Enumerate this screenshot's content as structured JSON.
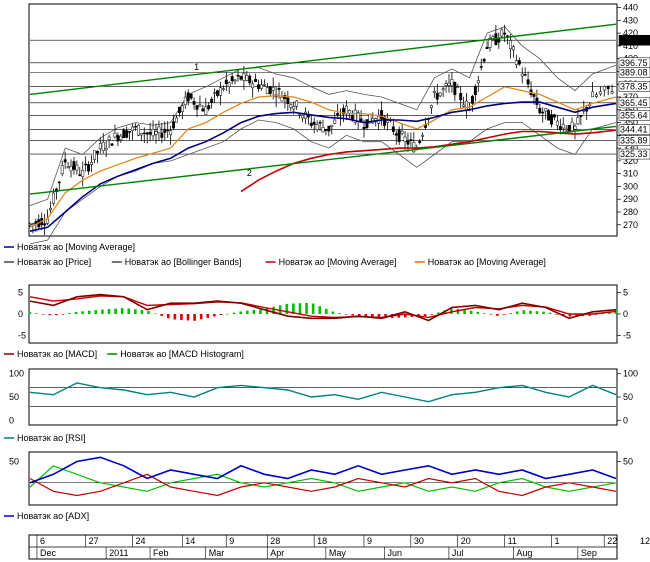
{
  "chart_data": [
    {
      "type": "candlestick",
      "y_ticks": [
        270,
        280,
        290,
        300,
        310,
        320,
        330,
        340,
        350,
        360,
        370,
        380,
        390,
        400,
        410,
        420,
        430,
        440
      ],
      "ylim": [
        262,
        442
      ],
      "grid_levels": [
        414.43,
        396.75,
        389.08,
        378.35,
        365.45,
        355.64,
        344.41,
        335.89,
        325.33
      ],
      "price_labels": [
        "414.43",
        "396.75",
        "389.08",
        "378.35",
        "365.45",
        "355.64",
        "344.41",
        "335.89",
        "325.33"
      ],
      "trendlines": [
        {
          "label": "1",
          "from": [
            0,
            372
          ],
          "to": [
            1,
            427
          ]
        },
        {
          "label": "2",
          "from": [
            0,
            294
          ],
          "to": [
            1,
            347
          ]
        }
      ],
      "trend_label_positions": [
        {
          "label": "1",
          "x": 0.28,
          "y": 391
        },
        {
          "label": "2",
          "x": 0.37,
          "y": 308
        }
      ],
      "price_x": [
        0.0,
        0.03,
        0.06,
        0.09,
        0.12,
        0.15,
        0.18,
        0.21,
        0.24,
        0.27,
        0.3,
        0.33,
        0.36,
        0.39,
        0.42,
        0.45,
        0.48,
        0.51,
        0.54,
        0.57,
        0.6,
        0.63,
        0.66,
        0.69,
        0.72,
        0.75,
        0.78,
        0.81,
        0.84,
        0.87,
        0.9,
        0.93,
        0.96,
        1.0
      ],
      "price_close": [
        270,
        275,
        320,
        310,
        330,
        340,
        345,
        340,
        345,
        370,
        360,
        378,
        385,
        380,
        375,
        365,
        350,
        345,
        360,
        350,
        355,
        340,
        330,
        370,
        380,
        360,
        410,
        420,
        390,
        360,
        350,
        345,
        370,
        378
      ],
      "ma_blue": [
        265,
        268,
        280,
        292,
        302,
        308,
        313,
        318,
        322,
        330,
        335,
        342,
        350,
        355,
        357,
        358,
        356,
        354,
        353,
        350,
        352,
        352,
        351,
        354,
        358,
        360,
        363,
        365,
        366,
        366,
        362,
        358,
        362,
        365
      ],
      "ma_orange": [
        268,
        275,
        295,
        305,
        312,
        317,
        322,
        326,
        330,
        345,
        350,
        358,
        365,
        370,
        371,
        370,
        366,
        360,
        357,
        357,
        355,
        350,
        345,
        352,
        360,
        362,
        370,
        378,
        375,
        372,
        366,
        360,
        365,
        370
      ],
      "ma_red": [
        null,
        null,
        null,
        null,
        null,
        null,
        null,
        null,
        null,
        null,
        null,
        null,
        296,
        305,
        312,
        318,
        322,
        325,
        327,
        328,
        329,
        330,
        330,
        331,
        333,
        335,
        338,
        341,
        343,
        343,
        342,
        341,
        342,
        344
      ],
      "bb_upper": [
        285,
        290,
        330,
        325,
        338,
        346,
        350,
        348,
        350,
        372,
        378,
        385,
        392,
        393,
        388,
        385,
        378,
        372,
        375,
        372,
        370,
        365,
        360,
        385,
        392,
        385,
        420,
        425,
        410,
        400,
        385,
        375,
        388,
        395
      ],
      "bb_lower": [
        255,
        258,
        280,
        290,
        300,
        308,
        312,
        318,
        320,
        325,
        330,
        335,
        345,
        352,
        350,
        345,
        335,
        330,
        340,
        335,
        335,
        325,
        315,
        325,
        335,
        335,
        345,
        350,
        350,
        340,
        330,
        325,
        345,
        350
      ],
      "legend_row1": [
        {
          "label": "Новатэк ао [Moving Average]",
          "color": "#000080"
        }
      ],
      "legend_row2": [
        {
          "label": "Новатэк ао [Price]",
          "color": "#444444"
        },
        {
          "label": "Новатэк ао [Bollinger Bands]",
          "color": "#444444"
        },
        {
          "label": "Новатэк ао [Moving Average]",
          "color": "#c00000"
        },
        {
          "label": "Новатэк ао [Moving Average]",
          "color": "#e07000"
        }
      ]
    },
    {
      "type": "line",
      "y_ticks": [
        -5,
        0,
        5
      ],
      "ylim": [
        -6.5,
        6.5
      ],
      "x": [
        0.0,
        0.04,
        0.08,
        0.12,
        0.16,
        0.2,
        0.24,
        0.28,
        0.32,
        0.36,
        0.4,
        0.44,
        0.48,
        0.52,
        0.56,
        0.6,
        0.64,
        0.68,
        0.72,
        0.76,
        0.8,
        0.84,
        0.88,
        0.92,
        0.96,
        1.0
      ],
      "macd": [
        3,
        2,
        4,
        4.5,
        4,
        1,
        2.5,
        2.5,
        3,
        2.5,
        1,
        -0.5,
        -1,
        -1,
        -0.5,
        -1,
        0.5,
        -1.5,
        1.5,
        2,
        1,
        2.5,
        1.5,
        -1,
        0.5,
        1
      ],
      "signal": [
        4,
        3,
        3.5,
        4.2,
        4,
        2,
        2.2,
        2.4,
        2.8,
        2.6,
        1.5,
        0.5,
        -0.5,
        -0.8,
        -0.6,
        -0.8,
        0,
        -0.8,
        0.5,
        1.5,
        1.2,
        2,
        1.6,
        0,
        0,
        0.6
      ],
      "histogram": [
        0.4,
        -0.4,
        0.5,
        1.0,
        1.4,
        0.8,
        -1.2,
        -1.6,
        -0.4,
        0.6,
        1.2,
        2.4,
        2.6,
        0.4,
        -0.6,
        -1.0,
        -0.8,
        -0.4,
        1.4,
        0.6,
        -0.5,
        0.9,
        0.5,
        -0.6,
        -0.4,
        1.0
      ],
      "legend": [
        {
          "label": "Новатэк ао [MACD]",
          "color": "#800000"
        },
        {
          "label": "Новатэк ао [MACD Histogram]",
          "color": "#008000"
        }
      ]
    },
    {
      "type": "line",
      "y_ticks": [
        0,
        50,
        100
      ],
      "ylim": [
        -8,
        108
      ],
      "levels": [
        70,
        30
      ],
      "x": [
        0.0,
        0.04,
        0.08,
        0.12,
        0.16,
        0.2,
        0.24,
        0.28,
        0.32,
        0.36,
        0.4,
        0.44,
        0.48,
        0.52,
        0.56,
        0.6,
        0.64,
        0.68,
        0.72,
        0.76,
        0.8,
        0.84,
        0.88,
        0.92,
        0.96,
        1.0
      ],
      "rsi": [
        60,
        55,
        80,
        70,
        65,
        55,
        60,
        50,
        70,
        75,
        70,
        65,
        50,
        55,
        45,
        60,
        50,
        40,
        55,
        60,
        70,
        75,
        60,
        50,
        75,
        55
      ],
      "legend": [
        {
          "label": "Новатэк ао [RSI]",
          "color": "#008080"
        }
      ]
    },
    {
      "type": "line",
      "y_ticks": [
        50
      ],
      "ylim": [
        0,
        60
      ],
      "levels": [
        25
      ],
      "x": [
        0.0,
        0.04,
        0.08,
        0.12,
        0.16,
        0.2,
        0.24,
        0.28,
        0.32,
        0.36,
        0.4,
        0.44,
        0.48,
        0.52,
        0.56,
        0.6,
        0.64,
        0.68,
        0.72,
        0.76,
        0.8,
        0.84,
        0.88,
        0.92,
        0.96,
        1.0
      ],
      "adx": [
        25,
        35,
        50,
        55,
        45,
        30,
        40,
        35,
        30,
        45,
        35,
        30,
        40,
        35,
        45,
        35,
        40,
        45,
        35,
        40,
        35,
        40,
        30,
        35,
        40,
        30
      ],
      "di_plus": [
        20,
        45,
        35,
        25,
        20,
        15,
        25,
        30,
        35,
        25,
        20,
        25,
        30,
        25,
        15,
        20,
        25,
        15,
        20,
        15,
        25,
        30,
        20,
        15,
        20,
        25
      ],
      "di_minus": [
        30,
        15,
        10,
        15,
        25,
        35,
        20,
        15,
        10,
        20,
        25,
        20,
        15,
        20,
        30,
        25,
        20,
        30,
        25,
        30,
        15,
        10,
        20,
        25,
        20,
        15
      ],
      "legend": [
        {
          "label": "Новатэк ао [ADX]",
          "color": "#0000c0"
        }
      ]
    }
  ],
  "time_axis": {
    "day_ticks": [
      {
        "label": "6",
        "x": 0.017
      },
      {
        "label": "27",
        "x": 0.1
      },
      {
        "label": "24",
        "x": 0.18
      },
      {
        "label": "14",
        "x": 0.265
      },
      {
        "label": "9",
        "x": 0.34
      },
      {
        "label": "28",
        "x": 0.41
      },
      {
        "label": "18",
        "x": 0.49
      },
      {
        "label": "9",
        "x": 0.575
      },
      {
        "label": "30",
        "x": 0.655
      },
      {
        "label": "20",
        "x": 0.735
      },
      {
        "label": "11",
        "x": 0.815
      },
      {
        "label": "1",
        "x": 0.895
      },
      {
        "label": "22",
        "x": 0.985
      },
      {
        "label": "12",
        "x": 1.1
      }
    ],
    "months": [
      {
        "label": "Dec",
        "x": 0.017
      },
      {
        "label": "2011",
        "x": 0.135
      },
      {
        "label": "Feb",
        "x": 0.21
      },
      {
        "label": "Mar",
        "x": 0.305
      },
      {
        "label": "Apr",
        "x": 0.41
      },
      {
        "label": "May",
        "x": 0.51
      },
      {
        "label": "Jun",
        "x": 0.61
      },
      {
        "label": "Jul",
        "x": 0.72
      },
      {
        "label": "Aug",
        "x": 0.83
      },
      {
        "label": "Sep",
        "x": 0.94
      }
    ]
  },
  "colors": {
    "green_trend": "#008000",
    "ma_blue": "#000080",
    "ma_orange": "#e08a20",
    "ma_red": "#c00000",
    "bollinger": "#555555",
    "macd": "#800000",
    "signal": "#c00000",
    "hist_pos": "#00c000",
    "hist_neg": "#e00000",
    "rsi": "#008080",
    "adx": "#0000c0",
    "di_plus": "#00c000",
    "di_minus": "#c00000"
  }
}
